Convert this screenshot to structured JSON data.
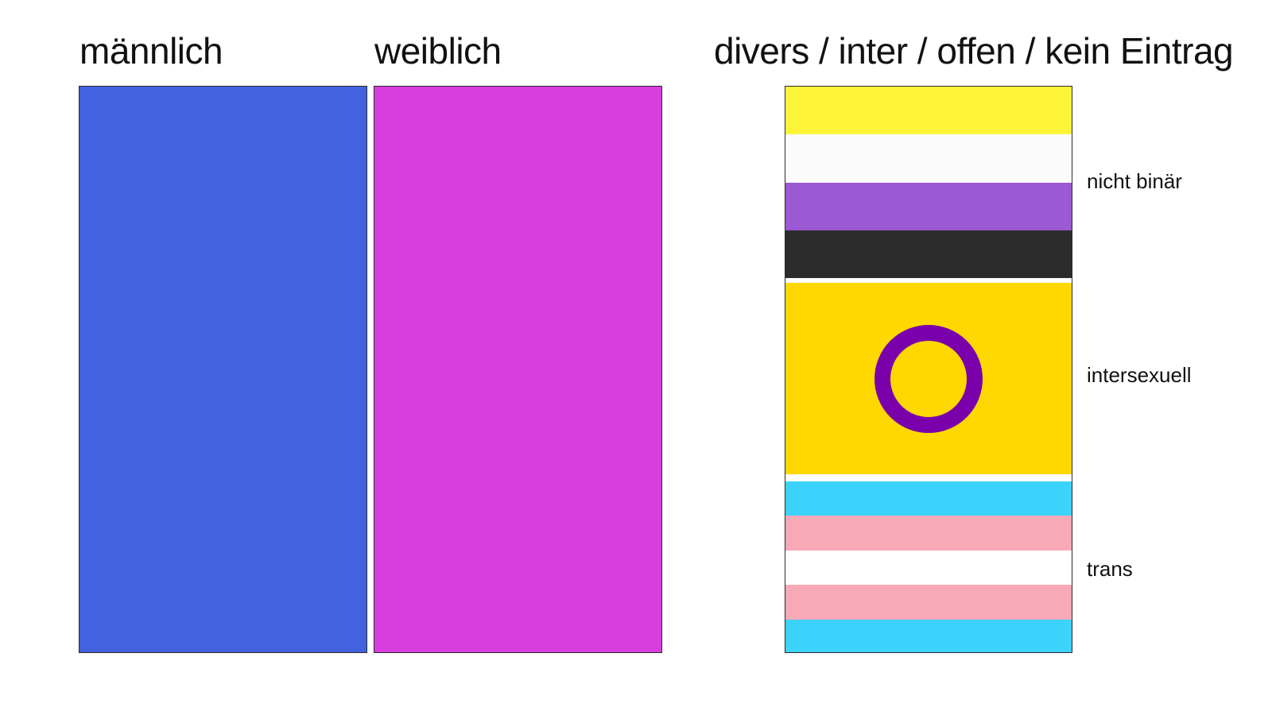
{
  "headings": {
    "male": "männlich",
    "female": "weiblich",
    "diverse": "divers / inter / offen / kein Eintrag"
  },
  "colors": {
    "male": "#4262DF",
    "female": "#D83EDD",
    "border": "#2A2A2A"
  },
  "flags": {
    "nonbinary": {
      "label": "nicht binär",
      "stripes": [
        "#FDF43A",
        "#FBFBFB",
        "#9B59D3",
        "#2C2C2C"
      ]
    },
    "intersex": {
      "label": "intersexuell",
      "background": "#FFD800",
      "ring_color": "#7A00AC"
    },
    "trans": {
      "label": "trans",
      "stripes": [
        "#3BD3FB",
        "#F8A9B8",
        "#FFFFFF",
        "#F8A9B8",
        "#3BD3FB"
      ]
    }
  }
}
